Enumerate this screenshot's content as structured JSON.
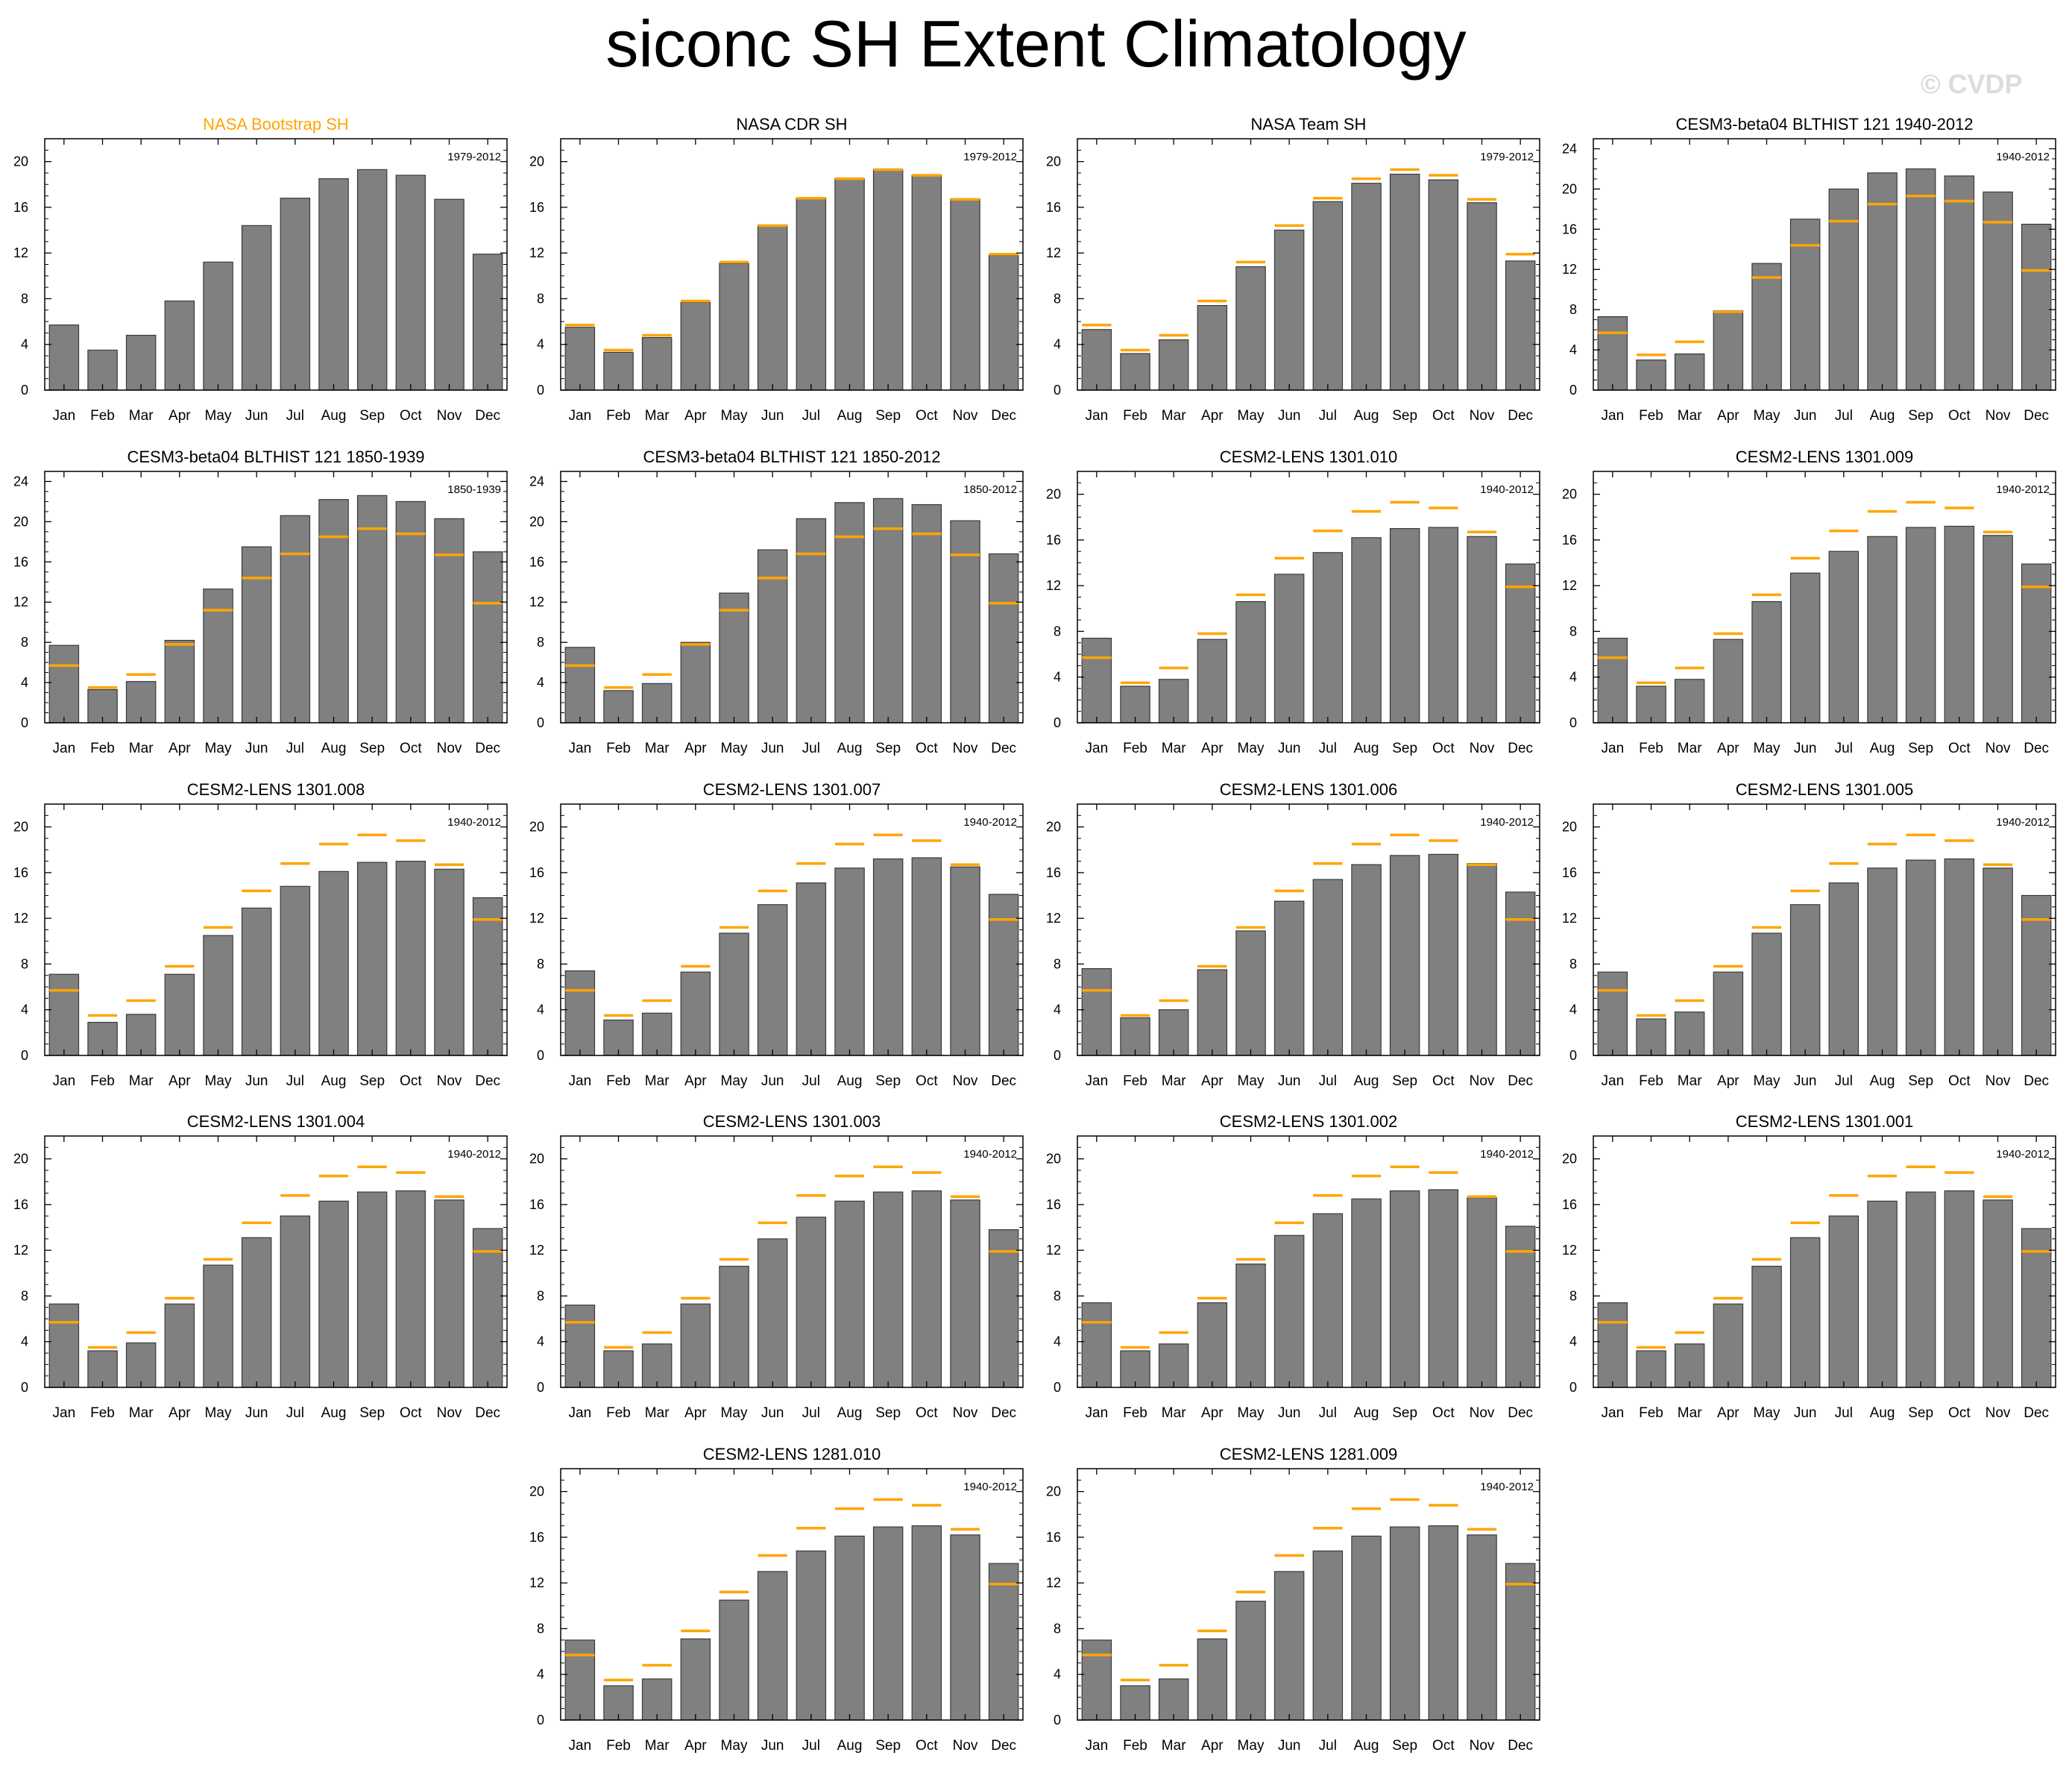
{
  "title": "siconc SH Extent Climatology",
  "watermark": "© CVDP",
  "colors": {
    "bar": "#808080",
    "bar_edge": "#3a3a3a",
    "obs_line": "#ffa500",
    "highlight_title": "#ffa500",
    "axis": "#000000"
  },
  "chart_data": [
    {
      "type": "bar",
      "title": "NASA Bootstrap SH",
      "title_color": "#ffa500",
      "period": "1979-2012",
      "categories": [
        "Jan",
        "Feb",
        "Mar",
        "Apr",
        "May",
        "Jun",
        "Jul",
        "Aug",
        "Sep",
        "Oct",
        "Nov",
        "Dec"
      ],
      "values": [
        5.7,
        3.5,
        4.8,
        7.8,
        11.2,
        14.4,
        16.8,
        18.5,
        19.3,
        18.8,
        16.7,
        11.9
      ],
      "reference": [
        5.7,
        3.5,
        4.8,
        7.8,
        11.2,
        14.4,
        16.8,
        18.5,
        19.3,
        18.8,
        16.7,
        11.9
      ],
      "show_reference": false,
      "ylim": [
        0,
        22
      ],
      "yticks": [
        0,
        4,
        8,
        12,
        16,
        20
      ]
    },
    {
      "type": "bar",
      "title": "NASA CDR SH",
      "period": "1979-2012",
      "categories": [
        "Jan",
        "Feb",
        "Mar",
        "Apr",
        "May",
        "Jun",
        "Jul",
        "Aug",
        "Sep",
        "Oct",
        "Nov",
        "Dec"
      ],
      "values": [
        5.5,
        3.3,
        4.6,
        7.7,
        11.1,
        14.4,
        16.8,
        18.5,
        19.3,
        18.8,
        16.7,
        11.8
      ],
      "reference": [
        5.7,
        3.5,
        4.8,
        7.8,
        11.2,
        14.4,
        16.8,
        18.5,
        19.3,
        18.8,
        16.7,
        11.9
      ],
      "ylim": [
        0,
        22
      ],
      "yticks": [
        0,
        4,
        8,
        12,
        16,
        20
      ]
    },
    {
      "type": "bar",
      "title": "NASA Team SH",
      "period": "1979-2012",
      "categories": [
        "Jan",
        "Feb",
        "Mar",
        "Apr",
        "May",
        "Jun",
        "Jul",
        "Aug",
        "Sep",
        "Oct",
        "Nov",
        "Dec"
      ],
      "values": [
        5.3,
        3.2,
        4.4,
        7.4,
        10.8,
        14.0,
        16.5,
        18.1,
        18.9,
        18.4,
        16.4,
        11.3
      ],
      "reference": [
        5.7,
        3.5,
        4.8,
        7.8,
        11.2,
        14.4,
        16.8,
        18.5,
        19.3,
        18.8,
        16.7,
        11.9
      ],
      "ylim": [
        0,
        22
      ],
      "yticks": [
        0,
        4,
        8,
        12,
        16,
        20
      ]
    },
    {
      "type": "bar",
      "title": "CESM3-beta04 BLTHIST 121 1940-2012",
      "period": "1940-2012",
      "categories": [
        "Jan",
        "Feb",
        "Mar",
        "Apr",
        "May",
        "Jun",
        "Jul",
        "Aug",
        "Sep",
        "Oct",
        "Nov",
        "Dec"
      ],
      "values": [
        7.3,
        3.0,
        3.6,
        7.9,
        12.6,
        17.0,
        20.0,
        21.6,
        22.0,
        21.3,
        19.7,
        16.5
      ],
      "reference": [
        5.7,
        3.5,
        4.8,
        7.8,
        11.2,
        14.4,
        16.8,
        18.5,
        19.3,
        18.8,
        16.7,
        11.9
      ],
      "ylim": [
        0,
        25
      ],
      "yticks": [
        0,
        4,
        8,
        12,
        16,
        20,
        24
      ]
    },
    {
      "type": "bar",
      "title": "CESM3-beta04 BLTHIST 121 1850-1939",
      "period": "1850-1939",
      "categories": [
        "Jan",
        "Feb",
        "Mar",
        "Apr",
        "May",
        "Jun",
        "Jul",
        "Aug",
        "Sep",
        "Oct",
        "Nov",
        "Dec"
      ],
      "values": [
        7.7,
        3.3,
        4.1,
        8.2,
        13.3,
        17.5,
        20.6,
        22.2,
        22.6,
        22.0,
        20.3,
        17.0
      ],
      "reference": [
        5.7,
        3.5,
        4.8,
        7.8,
        11.2,
        14.4,
        16.8,
        18.5,
        19.3,
        18.8,
        16.7,
        11.9
      ],
      "ylim": [
        0,
        25
      ],
      "yticks": [
        0,
        4,
        8,
        12,
        16,
        20,
        24
      ]
    },
    {
      "type": "bar",
      "title": "CESM3-beta04 BLTHIST 121 1850-2012",
      "period": "1850-2012",
      "categories": [
        "Jan",
        "Feb",
        "Mar",
        "Apr",
        "May",
        "Jun",
        "Jul",
        "Aug",
        "Sep",
        "Oct",
        "Nov",
        "Dec"
      ],
      "values": [
        7.5,
        3.2,
        3.9,
        8.0,
        12.9,
        17.2,
        20.3,
        21.9,
        22.3,
        21.7,
        20.1,
        16.8
      ],
      "reference": [
        5.7,
        3.5,
        4.8,
        7.8,
        11.2,
        14.4,
        16.8,
        18.5,
        19.3,
        18.8,
        16.7,
        11.9
      ],
      "ylim": [
        0,
        25
      ],
      "yticks": [
        0,
        4,
        8,
        12,
        16,
        20,
        24
      ]
    },
    {
      "type": "bar",
      "title": "CESM2-LENS 1301.010",
      "period": "1940-2012",
      "categories": [
        "Jan",
        "Feb",
        "Mar",
        "Apr",
        "May",
        "Jun",
        "Jul",
        "Aug",
        "Sep",
        "Oct",
        "Nov",
        "Dec"
      ],
      "values": [
        7.4,
        3.2,
        3.8,
        7.3,
        10.6,
        13.0,
        14.9,
        16.2,
        17.0,
        17.1,
        16.3,
        13.9
      ],
      "reference": [
        5.7,
        3.5,
        4.8,
        7.8,
        11.2,
        14.4,
        16.8,
        18.5,
        19.3,
        18.8,
        16.7,
        11.9
      ],
      "ylim": [
        0,
        22
      ],
      "yticks": [
        0,
        4,
        8,
        12,
        16,
        20
      ]
    },
    {
      "type": "bar",
      "title": "CESM2-LENS 1301.009",
      "period": "1940-2012",
      "categories": [
        "Jan",
        "Feb",
        "Mar",
        "Apr",
        "May",
        "Jun",
        "Jul",
        "Aug",
        "Sep",
        "Oct",
        "Nov",
        "Dec"
      ],
      "values": [
        7.4,
        3.2,
        3.8,
        7.3,
        10.6,
        13.1,
        15.0,
        16.3,
        17.1,
        17.2,
        16.4,
        13.9
      ],
      "reference": [
        5.7,
        3.5,
        4.8,
        7.8,
        11.2,
        14.4,
        16.8,
        18.5,
        19.3,
        18.8,
        16.7,
        11.9
      ],
      "ylim": [
        0,
        22
      ],
      "yticks": [
        0,
        4,
        8,
        12,
        16,
        20
      ]
    },
    {
      "type": "bar",
      "title": "CESM2-LENS 1301.008",
      "period": "1940-2012",
      "categories": [
        "Jan",
        "Feb",
        "Mar",
        "Apr",
        "May",
        "Jun",
        "Jul",
        "Aug",
        "Sep",
        "Oct",
        "Nov",
        "Dec"
      ],
      "values": [
        7.1,
        2.9,
        3.6,
        7.1,
        10.5,
        12.9,
        14.8,
        16.1,
        16.9,
        17.0,
        16.3,
        13.8
      ],
      "reference": [
        5.7,
        3.5,
        4.8,
        7.8,
        11.2,
        14.4,
        16.8,
        18.5,
        19.3,
        18.8,
        16.7,
        11.9
      ],
      "ylim": [
        0,
        22
      ],
      "yticks": [
        0,
        4,
        8,
        12,
        16,
        20
      ]
    },
    {
      "type": "bar",
      "title": "CESM2-LENS 1301.007",
      "period": "1940-2012",
      "categories": [
        "Jan",
        "Feb",
        "Mar",
        "Apr",
        "May",
        "Jun",
        "Jul",
        "Aug",
        "Sep",
        "Oct",
        "Nov",
        "Dec"
      ],
      "values": [
        7.4,
        3.1,
        3.7,
        7.3,
        10.7,
        13.2,
        15.1,
        16.4,
        17.2,
        17.3,
        16.5,
        14.1
      ],
      "reference": [
        5.7,
        3.5,
        4.8,
        7.8,
        11.2,
        14.4,
        16.8,
        18.5,
        19.3,
        18.8,
        16.7,
        11.9
      ],
      "ylim": [
        0,
        22
      ],
      "yticks": [
        0,
        4,
        8,
        12,
        16,
        20
      ]
    },
    {
      "type": "bar",
      "title": "CESM2-LENS 1301.006",
      "period": "1940-2012",
      "categories": [
        "Jan",
        "Feb",
        "Mar",
        "Apr",
        "May",
        "Jun",
        "Jul",
        "Aug",
        "Sep",
        "Oct",
        "Nov",
        "Dec"
      ],
      "values": [
        7.6,
        3.3,
        4.0,
        7.5,
        10.9,
        13.5,
        15.4,
        16.7,
        17.5,
        17.6,
        16.8,
        14.3
      ],
      "reference": [
        5.7,
        3.5,
        4.8,
        7.8,
        11.2,
        14.4,
        16.8,
        18.5,
        19.3,
        18.8,
        16.7,
        11.9
      ],
      "ylim": [
        0,
        22
      ],
      "yticks": [
        0,
        4,
        8,
        12,
        16,
        20
      ]
    },
    {
      "type": "bar",
      "title": "CESM2-LENS 1301.005",
      "period": "1940-2012",
      "categories": [
        "Jan",
        "Feb",
        "Mar",
        "Apr",
        "May",
        "Jun",
        "Jul",
        "Aug",
        "Sep",
        "Oct",
        "Nov",
        "Dec"
      ],
      "values": [
        7.3,
        3.2,
        3.8,
        7.3,
        10.7,
        13.2,
        15.1,
        16.4,
        17.1,
        17.2,
        16.4,
        14.0
      ],
      "reference": [
        5.7,
        3.5,
        4.8,
        7.8,
        11.2,
        14.4,
        16.8,
        18.5,
        19.3,
        18.8,
        16.7,
        11.9
      ],
      "ylim": [
        0,
        22
      ],
      "yticks": [
        0,
        4,
        8,
        12,
        16,
        20
      ]
    },
    {
      "type": "bar",
      "title": "CESM2-LENS 1301.004",
      "period": "1940-2012",
      "categories": [
        "Jan",
        "Feb",
        "Mar",
        "Apr",
        "May",
        "Jun",
        "Jul",
        "Aug",
        "Sep",
        "Oct",
        "Nov",
        "Dec"
      ],
      "values": [
        7.3,
        3.2,
        3.9,
        7.3,
        10.7,
        13.1,
        15.0,
        16.3,
        17.1,
        17.2,
        16.4,
        13.9
      ],
      "reference": [
        5.7,
        3.5,
        4.8,
        7.8,
        11.2,
        14.4,
        16.8,
        18.5,
        19.3,
        18.8,
        16.7,
        11.9
      ],
      "ylim": [
        0,
        22
      ],
      "yticks": [
        0,
        4,
        8,
        12,
        16,
        20
      ]
    },
    {
      "type": "bar",
      "title": "CESM2-LENS 1301.003",
      "period": "1940-2012",
      "categories": [
        "Jan",
        "Feb",
        "Mar",
        "Apr",
        "May",
        "Jun",
        "Jul",
        "Aug",
        "Sep",
        "Oct",
        "Nov",
        "Dec"
      ],
      "values": [
        7.2,
        3.2,
        3.8,
        7.3,
        10.6,
        13.0,
        14.9,
        16.3,
        17.1,
        17.2,
        16.4,
        13.8
      ],
      "reference": [
        5.7,
        3.5,
        4.8,
        7.8,
        11.2,
        14.4,
        16.8,
        18.5,
        19.3,
        18.8,
        16.7,
        11.9
      ],
      "ylim": [
        0,
        22
      ],
      "yticks": [
        0,
        4,
        8,
        12,
        16,
        20
      ]
    },
    {
      "type": "bar",
      "title": "CESM2-LENS 1301.002",
      "period": "1940-2012",
      "categories": [
        "Jan",
        "Feb",
        "Mar",
        "Apr",
        "May",
        "Jun",
        "Jul",
        "Aug",
        "Sep",
        "Oct",
        "Nov",
        "Dec"
      ],
      "values": [
        7.4,
        3.2,
        3.8,
        7.4,
        10.8,
        13.3,
        15.2,
        16.5,
        17.2,
        17.3,
        16.6,
        14.1
      ],
      "reference": [
        5.7,
        3.5,
        4.8,
        7.8,
        11.2,
        14.4,
        16.8,
        18.5,
        19.3,
        18.8,
        16.7,
        11.9
      ],
      "ylim": [
        0,
        22
      ],
      "yticks": [
        0,
        4,
        8,
        12,
        16,
        20
      ]
    },
    {
      "type": "bar",
      "title": "CESM2-LENS 1301.001",
      "period": "1940-2012",
      "categories": [
        "Jan",
        "Feb",
        "Mar",
        "Apr",
        "May",
        "Jun",
        "Jul",
        "Aug",
        "Sep",
        "Oct",
        "Nov",
        "Dec"
      ],
      "values": [
        7.4,
        3.2,
        3.8,
        7.3,
        10.6,
        13.1,
        15.0,
        16.3,
        17.1,
        17.2,
        16.4,
        13.9
      ],
      "reference": [
        5.7,
        3.5,
        4.8,
        7.8,
        11.2,
        14.4,
        16.8,
        18.5,
        19.3,
        18.8,
        16.7,
        11.9
      ],
      "ylim": [
        0,
        22
      ],
      "yticks": [
        0,
        4,
        8,
        12,
        16,
        20
      ]
    },
    {
      "type": "bar",
      "title": "CESM2-LENS 1281.010",
      "period": "1940-2012",
      "categories": [
        "Jan",
        "Feb",
        "Mar",
        "Apr",
        "May",
        "Jun",
        "Jul",
        "Aug",
        "Sep",
        "Oct",
        "Nov",
        "Dec"
      ],
      "values": [
        7.0,
        3.0,
        3.6,
        7.1,
        10.5,
        13.0,
        14.8,
        16.1,
        16.9,
        17.0,
        16.2,
        13.7
      ],
      "reference": [
        5.7,
        3.5,
        4.8,
        7.8,
        11.2,
        14.4,
        16.8,
        18.5,
        19.3,
        18.8,
        16.7,
        11.9
      ],
      "ylim": [
        0,
        22
      ],
      "yticks": [
        0,
        4,
        8,
        12,
        16,
        20
      ]
    },
    {
      "type": "bar",
      "title": "CESM2-LENS 1281.009",
      "period": "1940-2012",
      "categories": [
        "Jan",
        "Feb",
        "Mar",
        "Apr",
        "May",
        "Jun",
        "Jul",
        "Aug",
        "Sep",
        "Oct",
        "Nov",
        "Dec"
      ],
      "values": [
        7.0,
        3.0,
        3.6,
        7.1,
        10.4,
        13.0,
        14.8,
        16.1,
        16.9,
        17.0,
        16.2,
        13.7
      ],
      "reference": [
        5.7,
        3.5,
        4.8,
        7.8,
        11.2,
        14.4,
        16.8,
        18.5,
        19.3,
        18.8,
        16.7,
        11.9
      ],
      "ylim": [
        0,
        22
      ],
      "yticks": [
        0,
        4,
        8,
        12,
        16,
        20
      ]
    }
  ]
}
